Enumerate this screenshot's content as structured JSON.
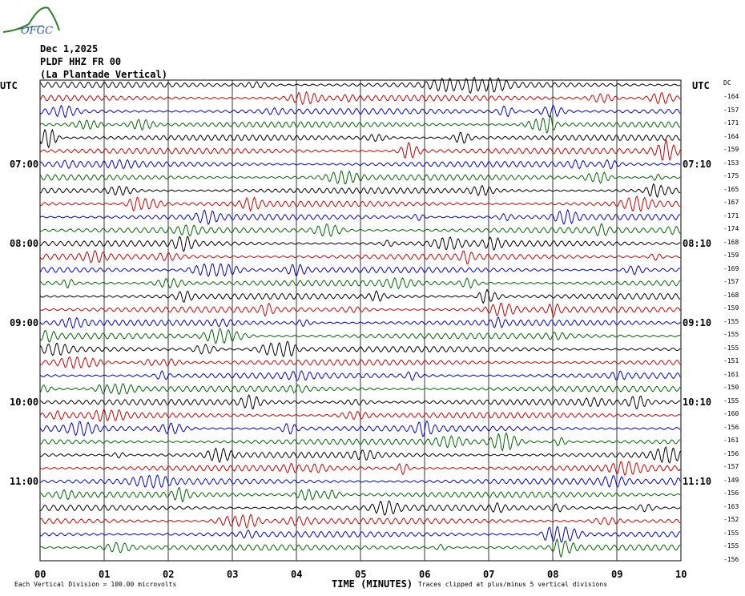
{
  "header": {
    "logo_text": "OFGC",
    "date": "Dec 1,2025",
    "station": "PLDF HHZ FR 00",
    "site": "(La Plantade Vertical)"
  },
  "utc_left": "UTC",
  "utc_right": "UTC",
  "dc_label": "DC",
  "left_hours": [
    "07:00",
    "08:00",
    "09:00",
    "10:00",
    "11:00"
  ],
  "right_hours": [
    "07:10",
    "08:10",
    "09:10",
    "10:10",
    "11:10"
  ],
  "trace_offsets": [
    -164,
    -157,
    -171,
    -164,
    -159,
    -153,
    -175,
    -165,
    -167,
    -171,
    -174,
    -168,
    -159,
    -169,
    -157,
    -168,
    -159,
    -155,
    -155,
    -155,
    -151,
    -161,
    -150,
    -155,
    -160,
    -156,
    -161,
    -156,
    -157,
    -149,
    -156,
    -163,
    -152,
    -155,
    -155,
    -156
  ],
  "trace_colors": [
    "#000000",
    "#cc0000",
    "#0000cc",
    "#006600"
  ],
  "x_ticks": [
    "00",
    "01",
    "02",
    "03",
    "04",
    "05",
    "06",
    "07",
    "08",
    "09",
    "10"
  ],
  "x_title": "TIME (MINUTES)",
  "foot_left": "Each Vertical Division =  100.00 microvolts",
  "foot_right": "Traces clipped at plus/minus 5 vertical divisions",
  "chart_data": {
    "type": "line",
    "title": "PLDF HHZ FR 00 (La Plantade Vertical)",
    "xlabel": "TIME (MINUTES)",
    "xlim": [
      0,
      10
    ],
    "traces_per_hour": 6,
    "trace_minutes": 10,
    "dc_offsets": [
      -164,
      -157,
      -171,
      -164,
      -159,
      -153,
      -175,
      -165,
      -167,
      -171,
      -174,
      -168,
      -159,
      -169,
      -157,
      -168,
      -159,
      -155,
      -155,
      -155,
      -151,
      -161,
      -150,
      -155,
      -160,
      -156,
      -161,
      -156,
      -157,
      -149,
      -156,
      -163,
      -152,
      -155,
      -155,
      -156
    ],
    "scale": "Each Vertical Division = 100.00 microvolts",
    "grid": true
  }
}
